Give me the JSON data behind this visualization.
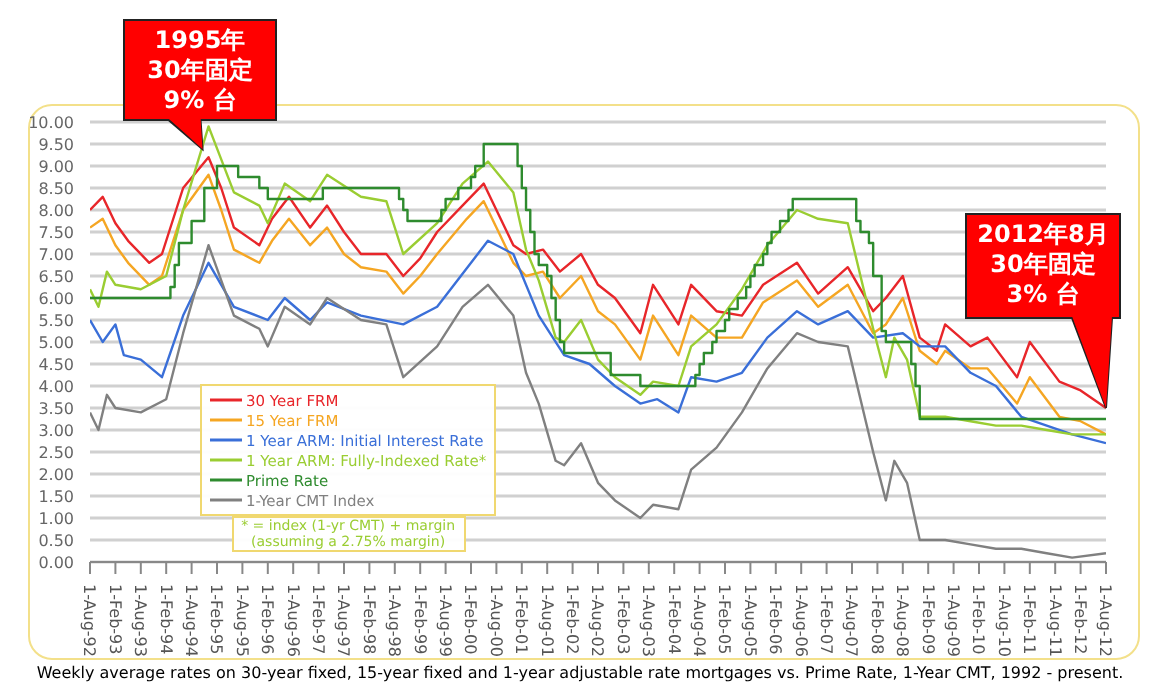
{
  "chart_data": {
    "type": "line",
    "annotations": [
      {
        "text": "1995年\n30年固定\n9% 台",
        "x": "1994-12",
        "y": 9.2
      },
      {
        "text": "2012年8月\n30年固定\n3% 台",
        "x": "2012-08",
        "y": 3.5
      },
      "* = index (1-yr CMT) + margin\n(assuming a 2.75% margin)",
      "Weekly average rates on 30-year fixed, 15-year fixed and 1-year adjustable rate mortgages vs. Prime Rate, 1-Year CMT, 1992 - present."
    ],
    "series": [
      {
        "name": "30 Year FRM",
        "color": "#e8262a",
        "x": [
          "1992-08",
          "1992-11",
          "1993-02",
          "1993-05",
          "1993-10",
          "1994-01",
          "1994-06",
          "1994-12",
          "1995-03",
          "1995-06",
          "1995-12",
          "1996-03",
          "1996-07",
          "1996-12",
          "1997-04",
          "1997-08",
          "1997-12",
          "1998-06",
          "1998-10",
          "1999-02",
          "1999-06",
          "2000-01",
          "2000-05",
          "2000-08",
          "2000-12",
          "2001-03",
          "2001-07",
          "2001-11",
          "2002-04",
          "2002-08",
          "2002-12",
          "2003-06",
          "2003-09",
          "2004-03",
          "2004-06",
          "2004-12",
          "2005-06",
          "2005-11",
          "2006-07",
          "2006-12",
          "2007-07",
          "2008-01",
          "2008-04",
          "2008-08",
          "2008-12",
          "2009-04",
          "2009-06",
          "2009-12",
          "2010-04",
          "2010-11",
          "2011-02",
          "2011-09",
          "2012-02",
          "2012-08"
        ],
        "values": [
          8.0,
          8.3,
          7.7,
          7.3,
          6.8,
          7.0,
          8.5,
          9.2,
          8.5,
          7.6,
          7.2,
          7.8,
          8.3,
          7.6,
          8.1,
          7.5,
          7.0,
          7.0,
          6.5,
          6.9,
          7.5,
          8.2,
          8.6,
          8.0,
          7.2,
          7.0,
          7.1,
          6.6,
          7.0,
          6.3,
          6.0,
          5.2,
          6.3,
          5.4,
          6.3,
          5.7,
          5.6,
          6.3,
          6.8,
          6.1,
          6.7,
          5.7,
          6.0,
          6.5,
          5.1,
          4.8,
          5.4,
          4.9,
          5.1,
          4.2,
          5.0,
          4.1,
          3.9,
          3.5
        ]
      },
      {
        "name": "15 Year FRM",
        "color": "#f5a623",
        "x": [
          "1992-08",
          "1992-11",
          "1993-02",
          "1993-05",
          "1993-10",
          "1994-01",
          "1994-06",
          "1994-12",
          "1995-03",
          "1995-06",
          "1995-12",
          "1996-03",
          "1996-07",
          "1996-12",
          "1997-04",
          "1997-08",
          "1997-12",
          "1998-06",
          "1998-10",
          "1999-02",
          "1999-06",
          "2000-01",
          "2000-05",
          "2000-08",
          "2000-12",
          "2001-03",
          "2001-07",
          "2001-11",
          "2002-04",
          "2002-08",
          "2002-12",
          "2003-06",
          "2003-09",
          "2004-03",
          "2004-06",
          "2004-12",
          "2005-06",
          "2005-11",
          "2006-07",
          "2006-12",
          "2007-07",
          "2008-01",
          "2008-04",
          "2008-08",
          "2008-12",
          "2009-04",
          "2009-06",
          "2009-12",
          "2010-04",
          "2010-11",
          "2011-02",
          "2011-09",
          "2012-02",
          "2012-08"
        ],
        "values": [
          7.6,
          7.8,
          7.2,
          6.8,
          6.3,
          6.5,
          8.0,
          8.8,
          8.0,
          7.1,
          6.8,
          7.3,
          7.8,
          7.2,
          7.6,
          7.0,
          6.7,
          6.6,
          6.1,
          6.5,
          7.0,
          7.8,
          8.2,
          7.6,
          6.8,
          6.5,
          6.6,
          6.0,
          6.5,
          5.7,
          5.4,
          4.6,
          5.6,
          4.7,
          5.6,
          5.1,
          5.1,
          5.9,
          6.4,
          5.8,
          6.3,
          5.2,
          5.4,
          6.0,
          4.8,
          4.5,
          4.8,
          4.4,
          4.4,
          3.6,
          4.2,
          3.3,
          3.2,
          2.9
        ]
      },
      {
        "name": "1 Year ARM: Initial Interest Rate",
        "color": "#3a6fd8",
        "x": [
          "1992-08",
          "1992-11",
          "1993-02",
          "1993-04",
          "1993-08",
          "1994-01",
          "1994-06",
          "1994-12",
          "1995-06",
          "1996-02",
          "1996-06",
          "1996-12",
          "1997-04",
          "1997-12",
          "1998-10",
          "1999-06",
          "2000-06",
          "2000-12",
          "2001-06",
          "2001-12",
          "2002-06",
          "2002-12",
          "2003-06",
          "2003-10",
          "2004-03",
          "2004-06",
          "2004-12",
          "2005-06",
          "2005-12",
          "2006-07",
          "2006-12",
          "2007-07",
          "2008-01",
          "2008-08",
          "2008-12",
          "2009-06",
          "2009-12",
          "2010-06",
          "2010-12",
          "2011-06",
          "2011-12",
          "2012-08"
        ],
        "values": [
          5.5,
          5.0,
          5.4,
          4.7,
          4.6,
          4.2,
          5.6,
          6.8,
          5.8,
          5.5,
          6.0,
          5.5,
          5.9,
          5.6,
          5.4,
          5.8,
          7.3,
          7.0,
          5.6,
          4.7,
          4.5,
          4.0,
          3.6,
          3.7,
          3.4,
          4.2,
          4.1,
          4.3,
          5.1,
          5.7,
          5.4,
          5.7,
          5.1,
          5.2,
          4.9,
          4.9,
          4.3,
          4.0,
          3.3,
          3.1,
          2.9,
          2.7
        ]
      },
      {
        "name": "1 Year ARM: Fully-Indexed Rate*",
        "color": "#9acd32",
        "x": [
          "1992-08",
          "1992-10",
          "1992-12",
          "1993-02",
          "1993-08",
          "1994-02",
          "1994-06",
          "1994-12",
          "1995-06",
          "1995-12",
          "1996-02",
          "1996-06",
          "1996-12",
          "1997-04",
          "1997-12",
          "1998-06",
          "1998-10",
          "1999-06",
          "1999-12",
          "2000-06",
          "2000-12",
          "2001-03",
          "2001-06",
          "2001-10",
          "2001-12",
          "2002-04",
          "2002-08",
          "2002-12",
          "2003-06",
          "2003-09",
          "2004-03",
          "2004-06",
          "2004-12",
          "2005-06",
          "2005-12",
          "2006-07",
          "2006-12",
          "2007-07",
          "2008-01",
          "2008-04",
          "2008-06",
          "2008-09",
          "2008-12",
          "2009-06",
          "2009-12",
          "2010-06",
          "2010-12",
          "2011-06",
          "2011-12",
          "2012-08"
        ],
        "values": [
          6.2,
          5.8,
          6.6,
          6.3,
          6.2,
          6.5,
          8.0,
          9.9,
          8.4,
          8.1,
          7.7,
          8.6,
          8.2,
          8.8,
          8.3,
          8.2,
          7.0,
          7.7,
          8.6,
          9.1,
          8.4,
          7.1,
          6.4,
          5.1,
          5.0,
          5.5,
          4.6,
          4.2,
          3.8,
          4.1,
          4.0,
          4.9,
          5.4,
          6.2,
          7.2,
          8.0,
          7.8,
          7.7,
          5.3,
          4.2,
          5.1,
          4.6,
          3.3,
          3.3,
          3.2,
          3.1,
          3.1,
          3.0,
          2.9,
          2.9
        ]
      },
      {
        "name": "Prime Rate",
        "type": "step",
        "color": "#2e8b2e",
        "x": [
          "1992-08",
          "1994-03",
          "1994-04",
          "1994-05",
          "1994-08",
          "1994-11",
          "1995-02",
          "1995-07",
          "1995-12",
          "1996-02",
          "1997-03",
          "1998-09",
          "1998-10",
          "1998-11",
          "1999-07",
          "1999-08",
          "1999-11",
          "2000-02",
          "2000-03",
          "2000-05",
          "2001-01",
          "2001-02",
          "2001-03",
          "2001-04",
          "2001-05",
          "2001-06",
          "2001-08",
          "2001-09",
          "2001-10",
          "2001-11",
          "2001-12",
          "2002-11",
          "2003-06",
          "2004-07",
          "2004-08",
          "2004-09",
          "2004-11",
          "2004-12",
          "2005-02",
          "2005-03",
          "2005-05",
          "2005-07",
          "2005-08",
          "2005-09",
          "2005-11",
          "2005-12",
          "2006-01",
          "2006-03",
          "2006-05",
          "2006-06",
          "2007-09",
          "2007-10",
          "2007-12",
          "2008-01",
          "2008-03",
          "2008-04",
          "2008-10",
          "2008-11",
          "2008-12",
          "2012-08"
        ],
        "values": [
          6.0,
          6.25,
          6.75,
          7.25,
          7.75,
          8.5,
          9.0,
          8.75,
          8.5,
          8.25,
          8.5,
          8.25,
          8.0,
          7.75,
          8.0,
          8.25,
          8.5,
          8.75,
          9.0,
          9.5,
          9.0,
          8.5,
          8.0,
          7.5,
          7.0,
          6.75,
          6.5,
          6.0,
          5.5,
          5.0,
          4.75,
          4.25,
          4.0,
          4.25,
          4.5,
          4.75,
          5.0,
          5.25,
          5.5,
          5.75,
          6.0,
          6.25,
          6.5,
          6.75,
          7.0,
          7.25,
          7.5,
          7.75,
          8.0,
          8.25,
          7.75,
          7.5,
          7.25,
          6.5,
          5.25,
          5.0,
          4.5,
          4.0,
          3.25,
          3.25
        ]
      },
      {
        "name": "1-Year CMT Index",
        "color": "#808080",
        "x": [
          "1992-08",
          "1992-10",
          "1992-12",
          "1993-02",
          "1993-08",
          "1994-02",
          "1994-06",
          "1994-12",
          "1995-06",
          "1995-12",
          "1996-02",
          "1996-06",
          "1996-12",
          "1997-04",
          "1997-12",
          "1998-06",
          "1998-10",
          "1999-06",
          "1999-12",
          "2000-06",
          "2000-12",
          "2001-03",
          "2001-06",
          "2001-10",
          "2001-12",
          "2002-04",
          "2002-08",
          "2002-12",
          "2003-06",
          "2003-09",
          "2004-03",
          "2004-06",
          "2004-12",
          "2005-06",
          "2005-12",
          "2006-07",
          "2006-12",
          "2007-07",
          "2008-01",
          "2008-04",
          "2008-06",
          "2008-09",
          "2008-12",
          "2009-06",
          "2009-12",
          "2010-06",
          "2010-12",
          "2011-06",
          "2011-12",
          "2012-08"
        ],
        "values": [
          3.4,
          3.0,
          3.8,
          3.5,
          3.4,
          3.7,
          5.2,
          7.2,
          5.6,
          5.3,
          4.9,
          5.8,
          5.4,
          6.0,
          5.5,
          5.4,
          4.2,
          4.9,
          5.8,
          6.3,
          5.6,
          4.3,
          3.6,
          2.3,
          2.2,
          2.7,
          1.8,
          1.4,
          1.0,
          1.3,
          1.2,
          2.1,
          2.6,
          3.4,
          4.4,
          5.2,
          5.0,
          4.9,
          2.5,
          1.4,
          2.3,
          1.8,
          0.5,
          0.5,
          0.4,
          0.3,
          0.3,
          0.2,
          0.1,
          0.2
        ]
      }
    ],
    "xlim": [
      "1992-08",
      "2012-08"
    ],
    "xticks": [
      {
        "value": "1992-08",
        "label": "1-Aug-92"
      },
      {
        "value": "1993-02",
        "label": "1-Feb-93"
      },
      {
        "value": "1993-08",
        "label": "1-Aug-93"
      },
      {
        "value": "1994-02",
        "label": "1-Feb-94"
      },
      {
        "value": "1994-08",
        "label": "1-Aug-94"
      },
      {
        "value": "1995-02",
        "label": "1-Feb-95"
      },
      {
        "value": "1995-08",
        "label": "1-Aug-95"
      },
      {
        "value": "1996-02",
        "label": "1-Feb-96"
      },
      {
        "value": "1996-08",
        "label": "1-Aug-96"
      },
      {
        "value": "1997-02",
        "label": "1-Feb-97"
      },
      {
        "value": "1997-08",
        "label": "1-Aug-97"
      },
      {
        "value": "1998-02",
        "label": "1-Feb-98"
      },
      {
        "value": "1998-08",
        "label": "1-Aug-98"
      },
      {
        "value": "1999-02",
        "label": "1-Feb-99"
      },
      {
        "value": "1999-08",
        "label": "1-Aug-99"
      },
      {
        "value": "2000-02",
        "label": "1-Feb-00"
      },
      {
        "value": "2000-08",
        "label": "1-Aug-00"
      },
      {
        "value": "2001-02",
        "label": "1-Feb-01"
      },
      {
        "value": "2001-08",
        "label": "1-Aug-01"
      },
      {
        "value": "2002-02",
        "label": "1-Feb-02"
      },
      {
        "value": "2002-08",
        "label": "1-Aug-02"
      },
      {
        "value": "2003-02",
        "label": "1-Feb-03"
      },
      {
        "value": "2003-08",
        "label": "1-Aug-03"
      },
      {
        "value": "2004-02",
        "label": "1-Feb-04"
      },
      {
        "value": "2004-08",
        "label": "1-Aug-04"
      },
      {
        "value": "2005-02",
        "label": "1-Feb-05"
      },
      {
        "value": "2005-08",
        "label": "1-Aug-05"
      },
      {
        "value": "2006-02",
        "label": "1-Feb-06"
      },
      {
        "value": "2006-08",
        "label": "1-Aug-06"
      },
      {
        "value": "2007-02",
        "label": "1-Feb-07"
      },
      {
        "value": "2007-08",
        "label": "1-Aug-07"
      },
      {
        "value": "2008-02",
        "label": "1-Feb-08"
      },
      {
        "value": "2008-08",
        "label": "1-Aug-08"
      },
      {
        "value": "2009-02",
        "label": "1-Feb-09"
      },
      {
        "value": "2009-08",
        "label": "1-Aug-09"
      },
      {
        "value": "2010-02",
        "label": "1-Feb-10"
      },
      {
        "value": "2010-08",
        "label": "1-Aug-10"
      },
      {
        "value": "2011-02",
        "label": "1-Feb-11"
      },
      {
        "value": "2011-08",
        "label": "1-Aug-11"
      },
      {
        "value": "2012-02",
        "label": "1-Feb-12"
      },
      {
        "value": "2012-08",
        "label": "1-Aug-12"
      }
    ],
    "ylim": [
      0,
      10
    ],
    "yticks": [
      {
        "value": 0,
        "label": "0.00"
      },
      {
        "value": 0.5,
        "label": "0.50"
      },
      {
        "value": 1,
        "label": "1.00"
      },
      {
        "value": 1.5,
        "label": "1.50"
      },
      {
        "value": 2,
        "label": "2.00"
      },
      {
        "value": 2.5,
        "label": "2.50"
      },
      {
        "value": 3,
        "label": "3.00"
      },
      {
        "value": 3.5,
        "label": "3.50"
      },
      {
        "value": 4,
        "label": "4.00"
      },
      {
        "value": 4.5,
        "label": "4.50"
      },
      {
        "value": 5,
        "label": "5.00"
      },
      {
        "value": 5.5,
        "label": "5.50"
      },
      {
        "value": 6,
        "label": "6.00"
      },
      {
        "value": 6.5,
        "label": "6.50"
      },
      {
        "value": 7,
        "label": "7.00"
      },
      {
        "value": 7.5,
        "label": "7.50"
      },
      {
        "value": 8,
        "label": "8.00"
      },
      {
        "value": 8.5,
        "label": "8.50"
      },
      {
        "value": 9,
        "label": "9.00"
      },
      {
        "value": 9.5,
        "label": "9.50"
      },
      {
        "value": 10,
        "label": "10.00"
      }
    ],
    "grid": "y",
    "legend": "bottom left"
  }
}
